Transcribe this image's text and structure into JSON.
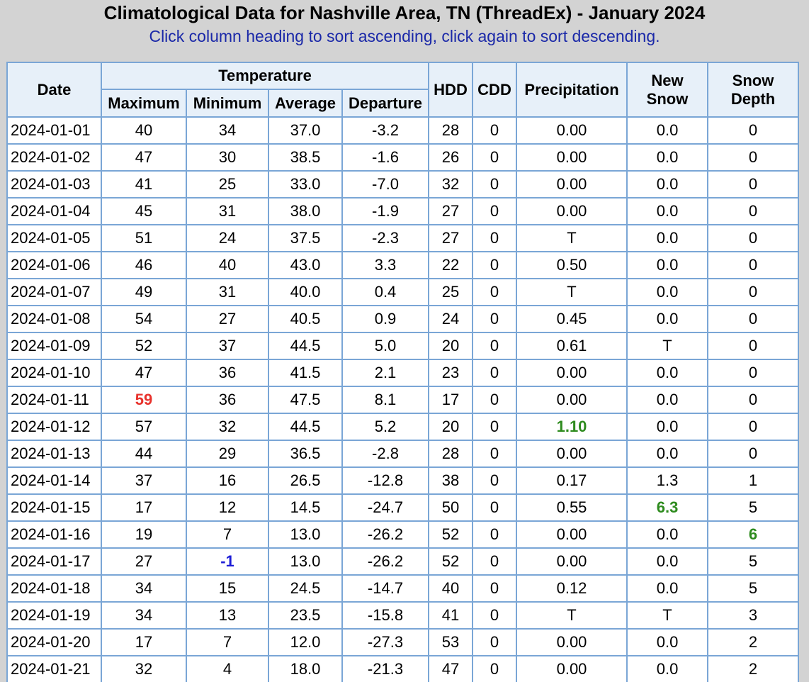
{
  "header": {
    "title": "Climatological Data for Nashville Area, TN (ThreadEx) - January 2024",
    "subtitle": "Click column heading to sort ascending, click again to sort descending."
  },
  "columns": {
    "date": "Date",
    "temperature": "Temperature",
    "maximum": "Maximum",
    "minimum": "Minimum",
    "average": "Average",
    "departure": "Departure",
    "hdd": "HDD",
    "cdd": "CDD",
    "precipitation": "Precipitation",
    "new_snow_line1": "New",
    "new_snow_line2": "Snow",
    "snow_depth_line1": "Snow",
    "snow_depth_line2": "Depth"
  },
  "highlight_colors": {
    "record_high": "#e8322c",
    "record_low": "#1c1cd6",
    "max_value": "#2e8b1e"
  },
  "rows": [
    {
      "date": "2024-01-01",
      "max": "40",
      "min": "34",
      "avg": "37.0",
      "dep": "-3.2",
      "hdd": "28",
      "cdd": "0",
      "precip": "0.00",
      "snow": "0.0",
      "depth": "0"
    },
    {
      "date": "2024-01-02",
      "max": "47",
      "min": "30",
      "avg": "38.5",
      "dep": "-1.6",
      "hdd": "26",
      "cdd": "0",
      "precip": "0.00",
      "snow": "0.0",
      "depth": "0"
    },
    {
      "date": "2024-01-03",
      "max": "41",
      "min": "25",
      "avg": "33.0",
      "dep": "-7.0",
      "hdd": "32",
      "cdd": "0",
      "precip": "0.00",
      "snow": "0.0",
      "depth": "0"
    },
    {
      "date": "2024-01-04",
      "max": "45",
      "min": "31",
      "avg": "38.0",
      "dep": "-1.9",
      "hdd": "27",
      "cdd": "0",
      "precip": "0.00",
      "snow": "0.0",
      "depth": "0"
    },
    {
      "date": "2024-01-05",
      "max": "51",
      "min": "24",
      "avg": "37.5",
      "dep": "-2.3",
      "hdd": "27",
      "cdd": "0",
      "precip": "T",
      "snow": "0.0",
      "depth": "0"
    },
    {
      "date": "2024-01-06",
      "max": "46",
      "min": "40",
      "avg": "43.0",
      "dep": "3.3",
      "hdd": "22",
      "cdd": "0",
      "precip": "0.50",
      "snow": "0.0",
      "depth": "0"
    },
    {
      "date": "2024-01-07",
      "max": "49",
      "min": "31",
      "avg": "40.0",
      "dep": "0.4",
      "hdd": "25",
      "cdd": "0",
      "precip": "T",
      "snow": "0.0",
      "depth": "0"
    },
    {
      "date": "2024-01-08",
      "max": "54",
      "min": "27",
      "avg": "40.5",
      "dep": "0.9",
      "hdd": "24",
      "cdd": "0",
      "precip": "0.45",
      "snow": "0.0",
      "depth": "0"
    },
    {
      "date": "2024-01-09",
      "max": "52",
      "min": "37",
      "avg": "44.5",
      "dep": "5.0",
      "hdd": "20",
      "cdd": "0",
      "precip": "0.61",
      "snow": "T",
      "depth": "0"
    },
    {
      "date": "2024-01-10",
      "max": "47",
      "min": "36",
      "avg": "41.5",
      "dep": "2.1",
      "hdd": "23",
      "cdd": "0",
      "precip": "0.00",
      "snow": "0.0",
      "depth": "0"
    },
    {
      "date": "2024-01-11",
      "max": "59",
      "min": "36",
      "avg": "47.5",
      "dep": "8.1",
      "hdd": "17",
      "cdd": "0",
      "precip": "0.00",
      "snow": "0.0",
      "depth": "0"
    },
    {
      "date": "2024-01-12",
      "max": "57",
      "min": "32",
      "avg": "44.5",
      "dep": "5.2",
      "hdd": "20",
      "cdd": "0",
      "precip": "1.10",
      "snow": "0.0",
      "depth": "0"
    },
    {
      "date": "2024-01-13",
      "max": "44",
      "min": "29",
      "avg": "36.5",
      "dep": "-2.8",
      "hdd": "28",
      "cdd": "0",
      "precip": "0.00",
      "snow": "0.0",
      "depth": "0"
    },
    {
      "date": "2024-01-14",
      "max": "37",
      "min": "16",
      "avg": "26.5",
      "dep": "-12.8",
      "hdd": "38",
      "cdd": "0",
      "precip": "0.17",
      "snow": "1.3",
      "depth": "1"
    },
    {
      "date": "2024-01-15",
      "max": "17",
      "min": "12",
      "avg": "14.5",
      "dep": "-24.7",
      "hdd": "50",
      "cdd": "0",
      "precip": "0.55",
      "snow": "6.3",
      "depth": "5"
    },
    {
      "date": "2024-01-16",
      "max": "19",
      "min": "7",
      "avg": "13.0",
      "dep": "-26.2",
      "hdd": "52",
      "cdd": "0",
      "precip": "0.00",
      "snow": "0.0",
      "depth": "6"
    },
    {
      "date": "2024-01-17",
      "max": "27",
      "min": "-1",
      "avg": "13.0",
      "dep": "-26.2",
      "hdd": "52",
      "cdd": "0",
      "precip": "0.00",
      "snow": "0.0",
      "depth": "5"
    },
    {
      "date": "2024-01-18",
      "max": "34",
      "min": "15",
      "avg": "24.5",
      "dep": "-14.7",
      "hdd": "40",
      "cdd": "0",
      "precip": "0.12",
      "snow": "0.0",
      "depth": "5"
    },
    {
      "date": "2024-01-19",
      "max": "34",
      "min": "13",
      "avg": "23.5",
      "dep": "-15.8",
      "hdd": "41",
      "cdd": "0",
      "precip": "T",
      "snow": "T",
      "depth": "3"
    },
    {
      "date": "2024-01-20",
      "max": "17",
      "min": "7",
      "avg": "12.0",
      "dep": "-27.3",
      "hdd": "53",
      "cdd": "0",
      "precip": "0.00",
      "snow": "0.0",
      "depth": "2"
    },
    {
      "date": "2024-01-21",
      "max": "32",
      "min": "4",
      "avg": "18.0",
      "dep": "-21.3",
      "hdd": "47",
      "cdd": "0",
      "precip": "0.00",
      "snow": "0.0",
      "depth": "2"
    }
  ],
  "highlights": [
    {
      "row": 10,
      "col": "max",
      "style": "record_high"
    },
    {
      "row": 11,
      "col": "precip",
      "style": "max_value"
    },
    {
      "row": 14,
      "col": "snow",
      "style": "max_value"
    },
    {
      "row": 15,
      "col": "depth",
      "style": "max_value"
    },
    {
      "row": 16,
      "col": "min",
      "style": "record_low"
    }
  ]
}
